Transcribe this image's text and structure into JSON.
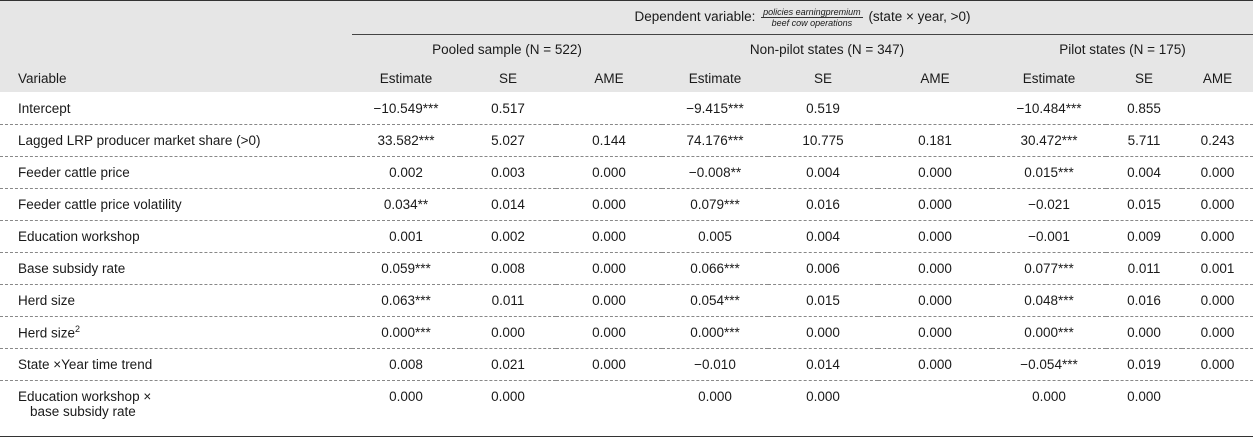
{
  "header": {
    "dependent_prefix": "Dependent variable:",
    "frac_num": "policies earningpremium",
    "frac_den": "beef cow operations",
    "dependent_suffix": "(state × year, >0)",
    "variable_label": "Variable",
    "groups": [
      {
        "label": "Pooled sample (N = 522)"
      },
      {
        "label": "Non-pilot states (N = 347)"
      },
      {
        "label": "Pilot states (N = 175)"
      }
    ],
    "subcols": [
      "Estimate",
      "SE",
      "AME"
    ]
  },
  "rows": [
    {
      "var": "Intercept",
      "v": [
        "−10.549***",
        "0.517",
        "",
        "−9.415***",
        "0.519",
        "",
        "−10.484***",
        "0.855",
        ""
      ]
    },
    {
      "var": "Lagged LRP producer market share (>0)",
      "v": [
        "33.582***",
        "5.027",
        "0.144",
        "74.176***",
        "10.775",
        "0.181",
        "30.472***",
        "5.711",
        "0.243"
      ]
    },
    {
      "var": "Feeder cattle price",
      "v": [
        "0.002",
        "0.003",
        "0.000",
        "−0.008**",
        "0.004",
        "0.000",
        "0.015***",
        "0.004",
        "0.000"
      ]
    },
    {
      "var": "Feeder cattle price volatility",
      "v": [
        "0.034**",
        "0.014",
        "0.000",
        "0.079***",
        "0.016",
        "0.000",
        "−0.021",
        "0.015",
        "0.000"
      ]
    },
    {
      "var": "Education workshop",
      "v": [
        "0.001",
        "0.002",
        "0.000",
        "0.005",
        "0.004",
        "0.000",
        "−0.001",
        "0.009",
        "0.000"
      ]
    },
    {
      "var": "Base subsidy rate",
      "v": [
        "0.059***",
        "0.008",
        "0.000",
        "0.066***",
        "0.006",
        "0.000",
        "0.077***",
        "0.011",
        "0.001"
      ]
    },
    {
      "var": "Herd size",
      "v": [
        "0.063***",
        "0.011",
        "0.000",
        "0.054***",
        "0.015",
        "0.000",
        "0.048***",
        "0.016",
        "0.000"
      ]
    },
    {
      "var": "Herd size",
      "sup": "2",
      "v": [
        "0.000***",
        "0.000",
        "0.000",
        "0.000***",
        "0.000",
        "0.000",
        "0.000***",
        "0.000",
        "0.000"
      ]
    },
    {
      "var": "State ×Year time trend",
      "v": [
        "0.008",
        "0.021",
        "0.000",
        "−0.010",
        "0.014",
        "0.000",
        "−0.054***",
        "0.019",
        "0.000"
      ]
    }
  ],
  "last_row": {
    "var_line1": "Education workshop ×",
    "var_line2": "base subsidy rate",
    "v": [
      "0.000",
      "0.000",
      "",
      "0.000",
      "0.000",
      "",
      "0.000",
      "0.000",
      ""
    ]
  }
}
